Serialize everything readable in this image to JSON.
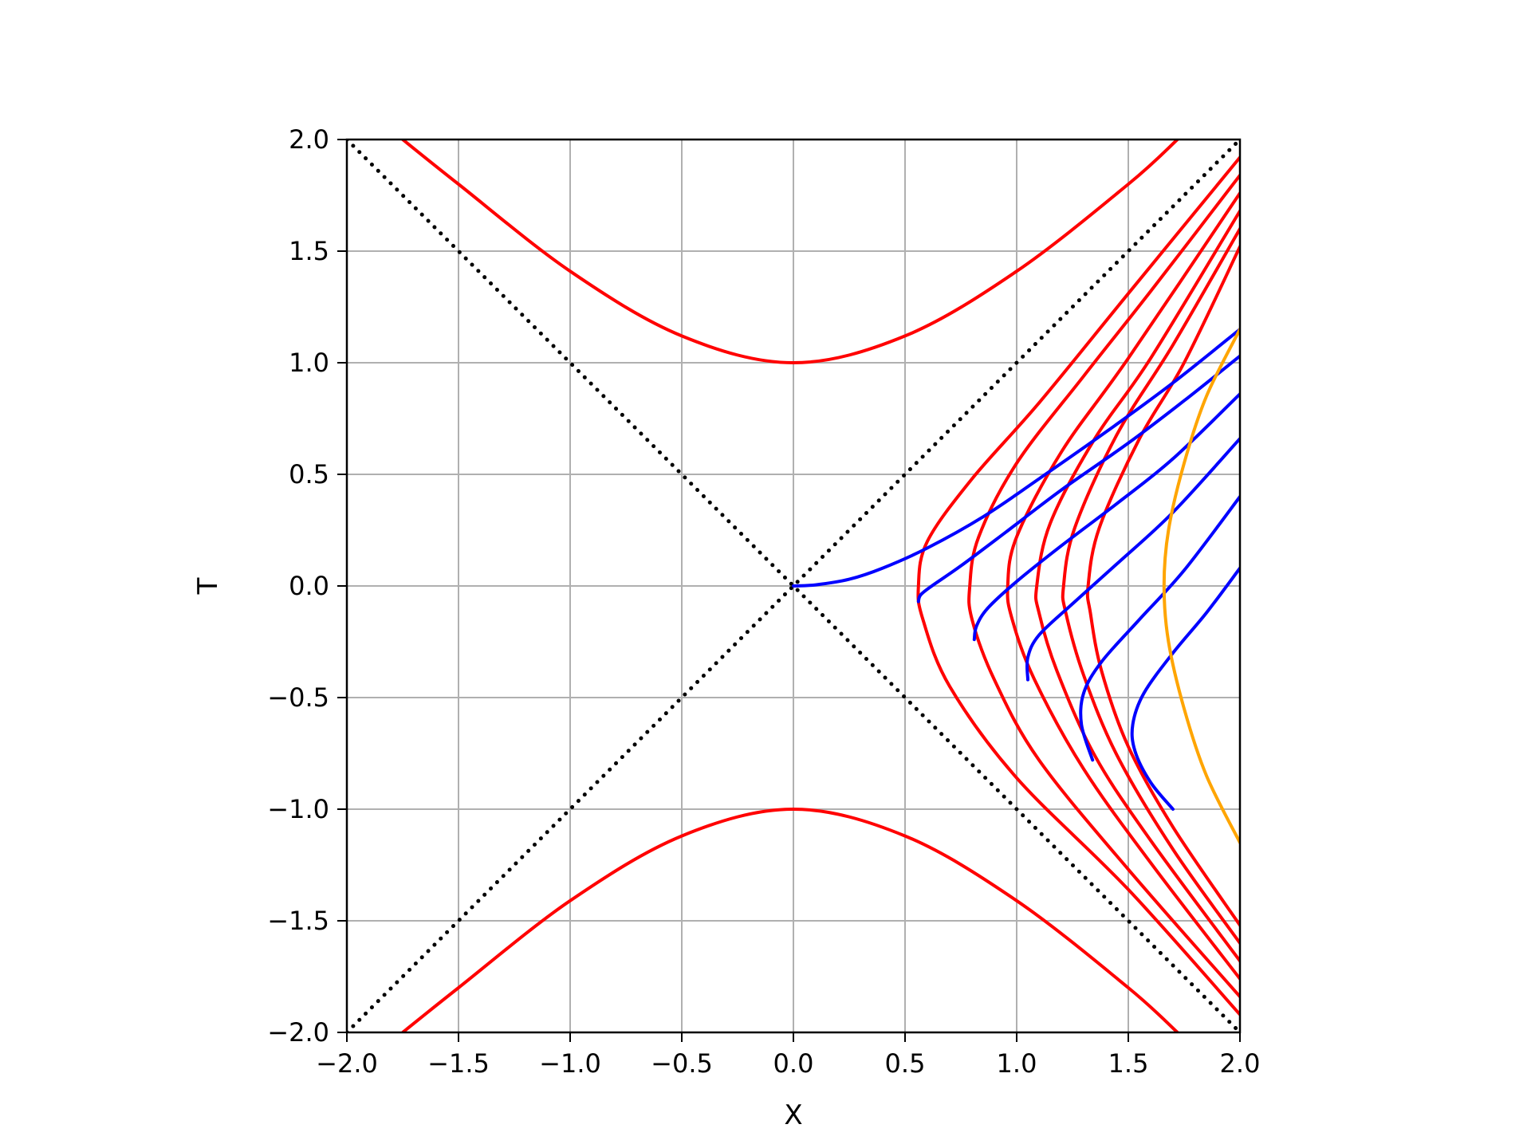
{
  "chart_data": {
    "type": "line",
    "title": "",
    "xlabel": "X",
    "ylabel": "T",
    "xlim": [
      -2.0,
      2.0
    ],
    "ylim": [
      -2.0,
      2.0
    ],
    "grid": true,
    "xticks": [
      -2.0,
      -1.5,
      -1.0,
      -0.5,
      0.0,
      0.5,
      1.0,
      1.5,
      2.0
    ],
    "yticks": [
      -2.0,
      -1.5,
      -1.0,
      -0.5,
      0.0,
      0.5,
      1.0,
      1.5,
      2.0
    ],
    "xtick_labels": [
      "−2.0",
      "−1.5",
      "−1.0",
      "−0.5",
      "0.0",
      "0.5",
      "1.0",
      "1.5",
      "2.0"
    ],
    "ytick_labels": [
      "−2.0",
      "−1.5",
      "−1.0",
      "−0.5",
      "0.0",
      "0.5",
      "1.0",
      "1.5",
      "2.0"
    ],
    "colors": {
      "red": "#ff0000",
      "blue": "#0000ff",
      "orange": "#ffa500",
      "light_cone": "#000000",
      "grid": "#b0b0b0"
    },
    "series": [
      {
        "kind": "light-cone",
        "color": "#000000",
        "style": "dotted",
        "points": [
          [
            -2,
            -2
          ],
          [
            2,
            2
          ]
        ]
      },
      {
        "kind": "light-cone",
        "color": "#000000",
        "style": "dotted",
        "points": [
          [
            -2,
            2
          ],
          [
            2,
            -2
          ]
        ]
      },
      {
        "kind": "hyperbola-time",
        "color": "#ff0000",
        "points": [
          [
            -1.75,
            2.0
          ],
          [
            -1.5,
            1.8
          ],
          [
            -1.0,
            1.41
          ],
          [
            -0.5,
            1.12
          ],
          [
            0.0,
            1.0
          ],
          [
            0.5,
            1.12
          ],
          [
            1.0,
            1.41
          ],
          [
            1.5,
            1.8
          ],
          [
            1.72,
            2.0
          ]
        ]
      },
      {
        "kind": "hyperbola-time",
        "color": "#ff0000",
        "points": [
          [
            -1.75,
            -2.0
          ],
          [
            -1.5,
            -1.8
          ],
          [
            -1.0,
            -1.41
          ],
          [
            -0.5,
            -1.12
          ],
          [
            0.0,
            -1.0
          ],
          [
            0.5,
            -1.12
          ],
          [
            1.0,
            -1.41
          ],
          [
            1.5,
            -1.8
          ],
          [
            1.72,
            -2.0
          ]
        ]
      },
      {
        "kind": "hyperbola-space",
        "color": "#ff0000",
        "points": [
          [
            2.0,
            -1.92
          ],
          [
            1.5,
            -1.36
          ],
          [
            1.0,
            -0.86
          ],
          [
            0.7,
            -0.45
          ],
          [
            0.58,
            -0.15
          ],
          [
            0.56,
            0.0
          ],
          [
            0.6,
            0.2
          ],
          [
            0.8,
            0.48
          ],
          [
            1.1,
            0.82
          ],
          [
            1.5,
            1.31
          ],
          [
            2.0,
            1.92
          ]
        ]
      },
      {
        "kind": "hyperbola-space",
        "color": "#ff0000",
        "points": [
          [
            2.0,
            -1.84
          ],
          [
            1.5,
            -1.27
          ],
          [
            1.1,
            -0.78
          ],
          [
            0.9,
            -0.42
          ],
          [
            0.8,
            -0.15
          ],
          [
            0.79,
            0.0
          ],
          [
            0.83,
            0.22
          ],
          [
            1.0,
            0.55
          ],
          [
            1.3,
            0.94
          ],
          [
            1.6,
            1.32
          ],
          [
            2.0,
            1.84
          ]
        ]
      },
      {
        "kind": "hyperbola-space",
        "color": "#ff0000",
        "points": [
          [
            2.0,
            -1.76
          ],
          [
            1.6,
            -1.24
          ],
          [
            1.3,
            -0.82
          ],
          [
            1.08,
            -0.42
          ],
          [
            0.98,
            -0.15
          ],
          [
            0.96,
            0.0
          ],
          [
            1.0,
            0.22
          ],
          [
            1.2,
            0.6
          ],
          [
            1.5,
            1.02
          ],
          [
            2.0,
            1.76
          ]
        ]
      },
      {
        "kind": "hyperbola-space",
        "color": "#ff0000",
        "points": [
          [
            2.0,
            -1.68
          ],
          [
            1.6,
            -1.14
          ],
          [
            1.35,
            -0.76
          ],
          [
            1.18,
            -0.38
          ],
          [
            1.1,
            -0.12
          ],
          [
            1.09,
            0.0
          ],
          [
            1.15,
            0.28
          ],
          [
            1.35,
            0.66
          ],
          [
            1.6,
            1.02
          ],
          [
            2.0,
            1.68
          ]
        ]
      },
      {
        "kind": "hyperbola-space",
        "color": "#ff0000",
        "points": [
          [
            2.0,
            -1.6
          ],
          [
            1.7,
            -1.18
          ],
          [
            1.45,
            -0.76
          ],
          [
            1.3,
            -0.4
          ],
          [
            1.22,
            -0.12
          ],
          [
            1.21,
            0.0
          ],
          [
            1.26,
            0.26
          ],
          [
            1.45,
            0.68
          ],
          [
            1.7,
            1.08
          ],
          [
            2.0,
            1.6
          ]
        ]
      },
      {
        "kind": "hyperbola-space",
        "color": "#ff0000",
        "points": [
          [
            2.0,
            -1.52
          ],
          [
            1.7,
            -1.08
          ],
          [
            1.5,
            -0.72
          ],
          [
            1.38,
            -0.38
          ],
          [
            1.33,
            -0.12
          ],
          [
            1.32,
            0.0
          ],
          [
            1.37,
            0.26
          ],
          [
            1.55,
            0.66
          ],
          [
            1.75,
            1.0
          ],
          [
            2.0,
            1.52
          ]
        ]
      },
      {
        "kind": "worldline",
        "color": "#0000ff",
        "points": [
          [
            0.0,
            0.0
          ],
          [
            0.1,
            0.005
          ],
          [
            0.25,
            0.03
          ],
          [
            0.4,
            0.08
          ],
          [
            0.6,
            0.17
          ],
          [
            0.85,
            0.31
          ],
          [
            1.1,
            0.48
          ],
          [
            1.4,
            0.69
          ],
          [
            1.7,
            0.91
          ],
          [
            2.0,
            1.15
          ]
        ]
      },
      {
        "kind": "worldline",
        "color": "#0000ff",
        "points": [
          [
            0.56,
            -0.07
          ],
          [
            0.57,
            -0.04
          ],
          [
            0.62,
            0.0
          ],
          [
            0.75,
            0.09
          ],
          [
            0.95,
            0.24
          ],
          [
            1.2,
            0.43
          ],
          [
            1.5,
            0.64
          ],
          [
            1.75,
            0.83
          ],
          [
            2.0,
            1.03
          ]
        ]
      },
      {
        "kind": "worldline",
        "color": "#0000ff",
        "points": [
          [
            0.81,
            -0.24
          ],
          [
            0.82,
            -0.18
          ],
          [
            0.87,
            -0.1
          ],
          [
            1.0,
            0.02
          ],
          [
            1.2,
            0.18
          ],
          [
            1.45,
            0.37
          ],
          [
            1.7,
            0.57
          ],
          [
            2.0,
            0.86
          ]
        ]
      },
      {
        "kind": "worldline",
        "color": "#0000ff",
        "points": [
          [
            1.05,
            -0.42
          ],
          [
            1.05,
            -0.32
          ],
          [
            1.1,
            -0.22
          ],
          [
            1.25,
            -0.08
          ],
          [
            1.45,
            0.1
          ],
          [
            1.7,
            0.33
          ],
          [
            2.0,
            0.66
          ]
        ]
      },
      {
        "kind": "worldline",
        "color": "#0000ff",
        "points": [
          [
            1.34,
            -0.78
          ],
          [
            1.29,
            -0.62
          ],
          [
            1.3,
            -0.48
          ],
          [
            1.38,
            -0.34
          ],
          [
            1.55,
            -0.15
          ],
          [
            1.75,
            0.07
          ],
          [
            2.0,
            0.4
          ]
        ]
      },
      {
        "kind": "worldline",
        "color": "#0000ff",
        "points": [
          [
            1.7,
            -1.0
          ],
          [
            1.6,
            -0.88
          ],
          [
            1.53,
            -0.74
          ],
          [
            1.52,
            -0.62
          ],
          [
            1.57,
            -0.48
          ],
          [
            1.7,
            -0.3
          ],
          [
            1.85,
            -0.12
          ],
          [
            2.0,
            0.08
          ]
        ]
      },
      {
        "kind": "hyperbola-orange",
        "color": "#ffa500",
        "points": [
          [
            2.0,
            -1.15
          ],
          [
            1.85,
            -0.85
          ],
          [
            1.75,
            -0.55
          ],
          [
            1.68,
            -0.25
          ],
          [
            1.66,
            0.0
          ],
          [
            1.68,
            0.25
          ],
          [
            1.75,
            0.55
          ],
          [
            1.85,
            0.85
          ],
          [
            2.0,
            1.15
          ]
        ]
      }
    ]
  }
}
